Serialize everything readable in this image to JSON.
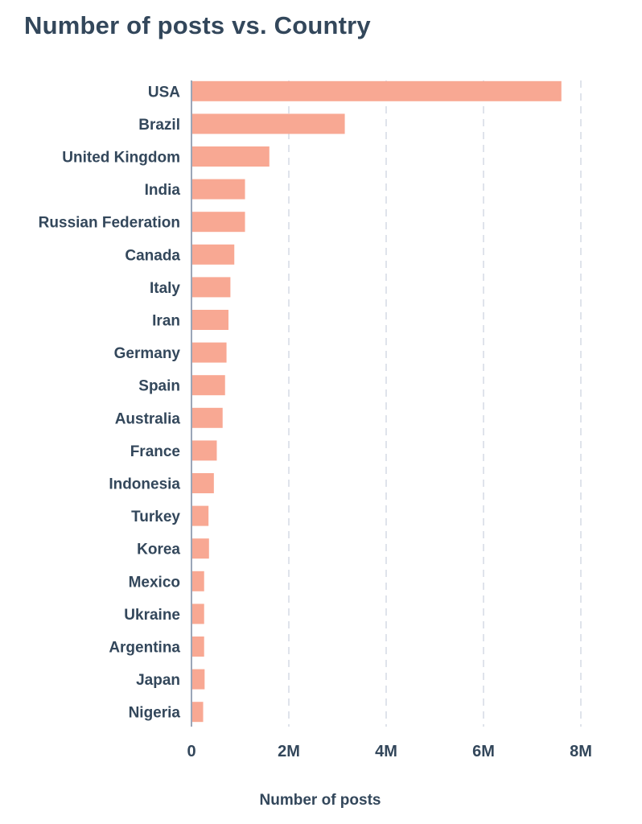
{
  "chart_data": {
    "type": "bar",
    "orientation": "horizontal",
    "title": "Number of posts vs. Country",
    "xlabel": "Number of posts",
    "ylabel": "",
    "categories": [
      "USA",
      "Brazil",
      "United Kingdom",
      "India",
      "Russian Federation",
      "Canada",
      "Italy",
      "Iran",
      "Germany",
      "Spain",
      "Australia",
      "France",
      "Indonesia",
      "Turkey",
      "Korea",
      "Mexico",
      "Ukraine",
      "Argentina",
      "Japan",
      "Nigeria"
    ],
    "values": [
      7600000,
      3150000,
      1600000,
      1100000,
      1100000,
      880000,
      800000,
      760000,
      720000,
      690000,
      640000,
      520000,
      460000,
      350000,
      360000,
      260000,
      260000,
      260000,
      270000,
      240000
    ],
    "xlim": [
      0,
      8000000
    ],
    "x_ticks": [
      0,
      2000000,
      4000000,
      6000000,
      8000000
    ],
    "x_tick_labels": [
      "0",
      "2M",
      "4M",
      "6M",
      "8M"
    ],
    "grid": "vertical dashed",
    "colors": {
      "bar": "#f8a893",
      "axis": "#9aa6b8",
      "grid": "#dfe3eb",
      "text": "#33475b"
    }
  }
}
